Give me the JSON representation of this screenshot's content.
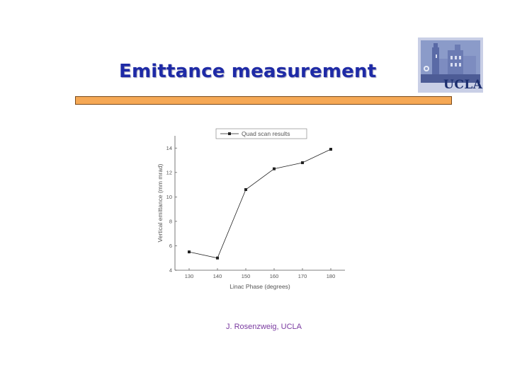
{
  "slide": {
    "title": "Emittance measurement",
    "logo_text": "UCLA",
    "footer": "J. Rosenzweig, UCLA",
    "colors": {
      "title": "#1e2aa6",
      "bar": "#f5a855",
      "footer": "#7a3aa0"
    }
  },
  "chart_data": {
    "type": "line",
    "title": "",
    "xlabel": "Linac Phase (degrees)",
    "ylabel": "Vertical emittance (mm mrad)",
    "x": [
      130,
      140,
      150,
      160,
      170,
      180
    ],
    "x_ticks": [
      130,
      140,
      150,
      160,
      170,
      180
    ],
    "y_ticks": [
      4,
      6,
      8,
      10,
      12,
      14
    ],
    "xlim": [
      125,
      185
    ],
    "ylim": [
      4,
      15
    ],
    "grid": false,
    "legend_position": "top",
    "series": [
      {
        "name": "Quad scan results",
        "values": [
          5.5,
          5.0,
          10.6,
          12.3,
          12.8,
          13.9
        ],
        "color": "#222222",
        "marker": "square"
      }
    ]
  }
}
